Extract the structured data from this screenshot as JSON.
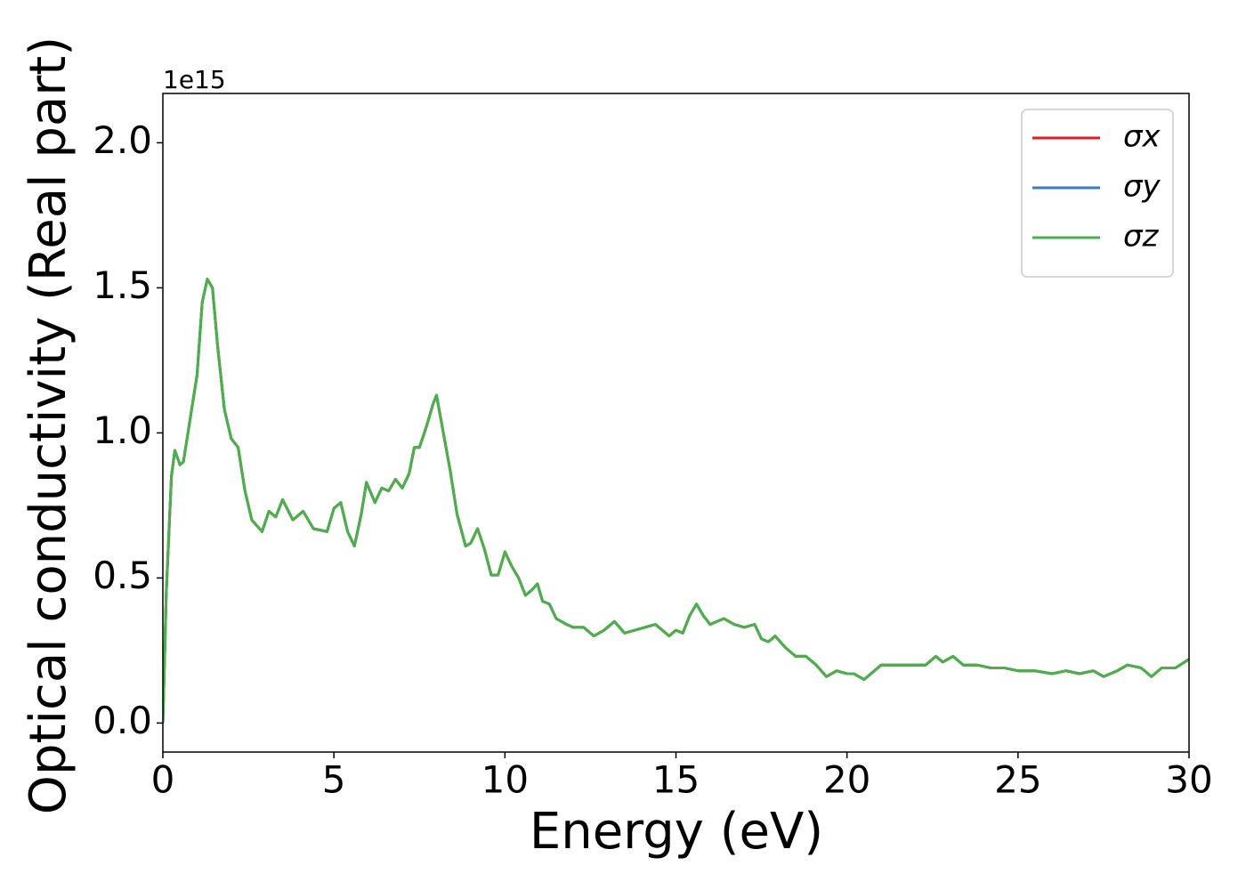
{
  "chart_data": {
    "type": "line",
    "x_label": "Energy (eV)",
    "y_label": "Optical conductivity (Real part)",
    "y_offset_label": "1e15",
    "xlim": [
      0,
      30
    ],
    "ylim": [
      -0.1,
      2.17
    ],
    "xticks": [
      0,
      5,
      10,
      15,
      20,
      25,
      30
    ],
    "yticks": [
      {
        "value": 0,
        "label": "0.0"
      },
      0.5,
      {
        "value": 1,
        "label": "1.0"
      },
      1.5,
      {
        "value": 2,
        "label": "2.0"
      }
    ],
    "grid": false,
    "legend": "upper right",
    "x": [
      0,
      0.1,
      0.25,
      0.35,
      0.5,
      0.6,
      0.8,
      1.0,
      1.15,
      1.3,
      1.45,
      1.6,
      1.8,
      2.0,
      2.2,
      2.4,
      2.6,
      2.9,
      3.1,
      3.3,
      3.5,
      3.8,
      4.1,
      4.4,
      4.8,
      5.0,
      5.2,
      5.4,
      5.6,
      5.8,
      5.95,
      6.2,
      6.4,
      6.6,
      6.8,
      7.0,
      7.2,
      7.35,
      7.5,
      7.7,
      7.9,
      8.0,
      8.2,
      8.4,
      8.6,
      8.85,
      9.0,
      9.2,
      9.4,
      9.6,
      9.8,
      10.0,
      10.2,
      10.4,
      10.6,
      10.8,
      10.95,
      11.1,
      11.3,
      11.5,
      11.8,
      12.0,
      12.3,
      12.6,
      12.9,
      13.2,
      13.5,
      13.8,
      14.1,
      14.4,
      14.6,
      14.8,
      15.0,
      15.2,
      15.4,
      15.6,
      15.8,
      16.0,
      16.4,
      16.7,
      17.0,
      17.3,
      17.5,
      17.7,
      17.9,
      18.2,
      18.5,
      18.8,
      19.1,
      19.4,
      19.7,
      20.0,
      20.2,
      20.5,
      20.8,
      21.0,
      21.3,
      21.6,
      22.0,
      22.3,
      22.6,
      22.8,
      23.1,
      23.4,
      23.8,
      24.2,
      24.6,
      25.0,
      25.5,
      26.0,
      26.4,
      26.8,
      27.2,
      27.5,
      27.9,
      28.2,
      28.6,
      28.9,
      29.2,
      29.6,
      30.0
    ],
    "series": [
      {
        "name": "σx",
        "color": "#e41a1c",
        "values": [
          0,
          0.45,
          0.85,
          0.94,
          0.89,
          0.9,
          1.05,
          1.2,
          1.45,
          1.53,
          1.5,
          1.3,
          1.08,
          0.98,
          0.95,
          0.8,
          0.7,
          0.66,
          0.73,
          0.71,
          0.77,
          0.7,
          0.73,
          0.67,
          0.66,
          0.74,
          0.76,
          0.66,
          0.61,
          0.72,
          0.83,
          0.76,
          0.81,
          0.8,
          0.84,
          0.81,
          0.86,
          0.95,
          0.95,
          1.02,
          1.1,
          1.13,
          1.0,
          0.87,
          0.72,
          0.61,
          0.62,
          0.67,
          0.6,
          0.51,
          0.51,
          0.59,
          0.54,
          0.5,
          0.44,
          0.46,
          0.48,
          0.42,
          0.41,
          0.36,
          0.34,
          0.33,
          0.33,
          0.3,
          0.32,
          0.35,
          0.31,
          0.32,
          0.33,
          0.34,
          0.32,
          0.3,
          0.32,
          0.31,
          0.37,
          0.41,
          0.37,
          0.34,
          0.36,
          0.34,
          0.33,
          0.34,
          0.29,
          0.28,
          0.3,
          0.26,
          0.23,
          0.23,
          0.2,
          0.16,
          0.18,
          0.17,
          0.17,
          0.15,
          0.18,
          0.2,
          0.2,
          0.2,
          0.2,
          0.2,
          0.23,
          0.21,
          0.23,
          0.2,
          0.2,
          0.19,
          0.19,
          0.18,
          0.18,
          0.17,
          0.18,
          0.17,
          0.18,
          0.16,
          0.18,
          0.2,
          0.19,
          0.16,
          0.19,
          0.19,
          0.22
        ]
      },
      {
        "name": "σy",
        "color": "#377eb8",
        "values": [
          0,
          0.45,
          0.85,
          0.94,
          0.89,
          0.9,
          1.05,
          1.2,
          1.45,
          1.53,
          1.5,
          1.3,
          1.08,
          0.98,
          0.95,
          0.8,
          0.7,
          0.66,
          0.73,
          0.71,
          0.77,
          0.7,
          0.73,
          0.67,
          0.66,
          0.74,
          0.76,
          0.66,
          0.61,
          0.72,
          0.83,
          0.76,
          0.81,
          0.8,
          0.84,
          0.81,
          0.86,
          0.95,
          0.95,
          1.02,
          1.1,
          1.13,
          1.0,
          0.87,
          0.72,
          0.61,
          0.62,
          0.67,
          0.6,
          0.51,
          0.51,
          0.59,
          0.54,
          0.5,
          0.44,
          0.46,
          0.48,
          0.42,
          0.41,
          0.36,
          0.34,
          0.33,
          0.33,
          0.3,
          0.32,
          0.35,
          0.31,
          0.32,
          0.33,
          0.34,
          0.32,
          0.3,
          0.32,
          0.31,
          0.37,
          0.41,
          0.37,
          0.34,
          0.36,
          0.34,
          0.33,
          0.34,
          0.29,
          0.28,
          0.3,
          0.26,
          0.23,
          0.23,
          0.2,
          0.16,
          0.18,
          0.17,
          0.17,
          0.15,
          0.18,
          0.2,
          0.2,
          0.2,
          0.2,
          0.2,
          0.23,
          0.21,
          0.23,
          0.2,
          0.2,
          0.19,
          0.19,
          0.18,
          0.18,
          0.17,
          0.18,
          0.17,
          0.18,
          0.16,
          0.18,
          0.2,
          0.19,
          0.16,
          0.19,
          0.19,
          0.22
        ]
      },
      {
        "name": "σz",
        "color": "#4daf4a",
        "values": [
          0,
          0.45,
          0.85,
          0.94,
          0.89,
          0.9,
          1.05,
          1.2,
          1.45,
          1.53,
          1.5,
          1.3,
          1.08,
          0.98,
          0.95,
          0.8,
          0.7,
          0.66,
          0.73,
          0.71,
          0.77,
          0.7,
          0.73,
          0.67,
          0.66,
          0.74,
          0.76,
          0.66,
          0.61,
          0.72,
          0.83,
          0.76,
          0.81,
          0.8,
          0.84,
          0.81,
          0.86,
          0.95,
          0.95,
          1.02,
          1.1,
          1.13,
          1.0,
          0.87,
          0.72,
          0.61,
          0.62,
          0.67,
          0.6,
          0.51,
          0.51,
          0.59,
          0.54,
          0.5,
          0.44,
          0.46,
          0.48,
          0.42,
          0.41,
          0.36,
          0.34,
          0.33,
          0.33,
          0.3,
          0.32,
          0.35,
          0.31,
          0.32,
          0.33,
          0.34,
          0.32,
          0.3,
          0.32,
          0.31,
          0.37,
          0.41,
          0.37,
          0.34,
          0.36,
          0.34,
          0.33,
          0.34,
          0.29,
          0.28,
          0.3,
          0.26,
          0.23,
          0.23,
          0.2,
          0.16,
          0.18,
          0.17,
          0.17,
          0.15,
          0.18,
          0.2,
          0.2,
          0.2,
          0.2,
          0.2,
          0.23,
          0.21,
          0.23,
          0.2,
          0.2,
          0.19,
          0.19,
          0.18,
          0.18,
          0.17,
          0.18,
          0.17,
          0.18,
          0.16,
          0.18,
          0.2,
          0.19,
          0.16,
          0.19,
          0.19,
          0.22
        ]
      }
    ]
  }
}
